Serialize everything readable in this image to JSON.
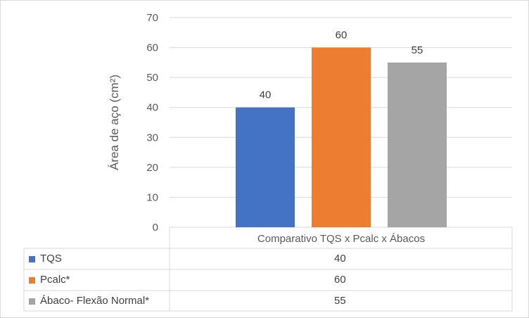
{
  "chart_data": {
    "type": "bar",
    "categories": [
      "Comparativo TQS x Pcalc x Ábacos"
    ],
    "series": [
      {
        "name": "TQS",
        "values": [
          40
        ],
        "color": "#4472c4"
      },
      {
        "name": "Pcalc*",
        "values": [
          60
        ],
        "color": "#ed7d31"
      },
      {
        "name": "Ábaco- Flexão Normal*",
        "values": [
          55
        ],
        "color": "#a5a5a5"
      }
    ],
    "title": "",
    "xlabel": "",
    "ylabel": "Área de aço (cm²)",
    "ylim": [
      0,
      70
    ],
    "yticks": [
      0,
      10,
      20,
      30,
      40,
      50,
      60,
      70
    ],
    "grid": true,
    "data_labels": true,
    "legend": "data-table-below"
  }
}
